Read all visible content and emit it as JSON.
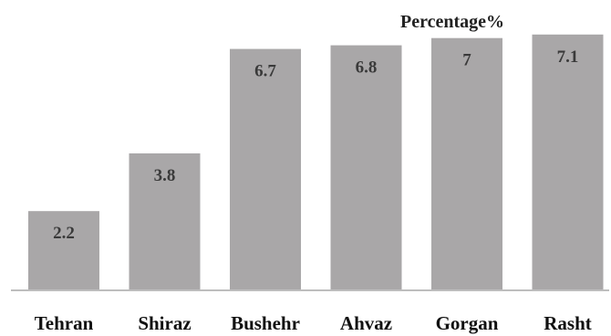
{
  "chart_data": {
    "type": "bar",
    "title": "Percentage%",
    "categories": [
      "Tehran",
      "Shiraz",
      "Bushehr",
      "Ahvaz",
      "Gorgan",
      "Rasht"
    ],
    "values": [
      2.2,
      3.8,
      6.7,
      6.8,
      7,
      7.1
    ],
    "value_labels": [
      "2.2",
      "3.8",
      "6.7",
      "6.8",
      "7",
      "7.1"
    ],
    "xlabel": "",
    "ylabel": "",
    "ylim": [
      0,
      7.5
    ],
    "grid": false,
    "legend": "none",
    "colors": {
      "bar": "#a9a7a8",
      "value_text": "#3a3a3a",
      "tick_text": "#111111",
      "axis": "#bdbdbd"
    }
  }
}
